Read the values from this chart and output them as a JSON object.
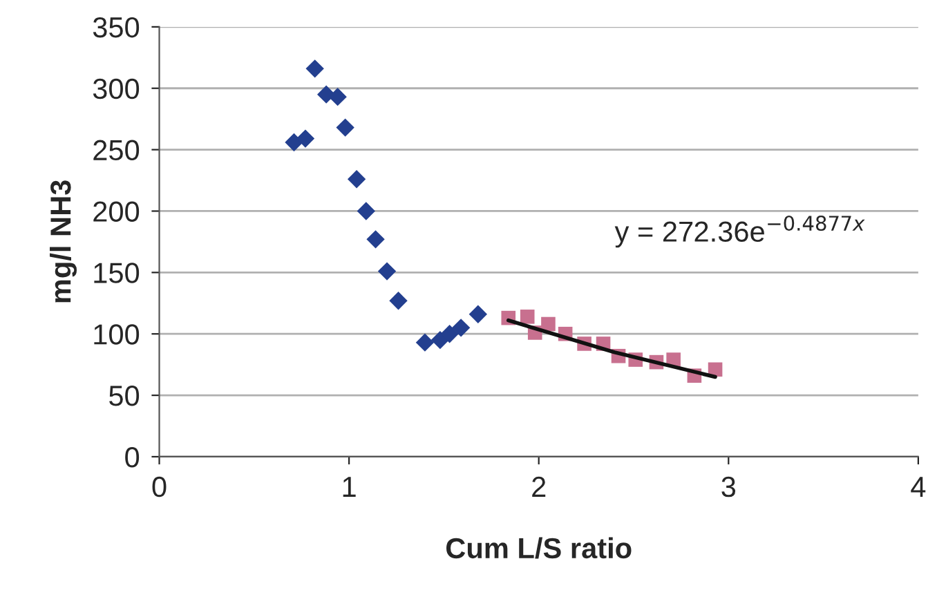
{
  "chart_data": {
    "type": "scatter",
    "xlabel": "Cum L/S ratio",
    "ylabel": "mg/l NH3",
    "xlim": [
      0,
      4
    ],
    "xticks": [
      0,
      1,
      2,
      3,
      4
    ],
    "ylim": [
      0,
      350
    ],
    "yticks": [
      0,
      50,
      100,
      150,
      200,
      250,
      300,
      350
    ],
    "grid": "y",
    "legend": false,
    "annotations": [
      "y = 272.36e$^{−0.4877x}$"
    ],
    "series": [
      {
        "color": "#233f8f",
        "marker": "diamond",
        "x": [
          0.71,
          0.77,
          0.82,
          0.88,
          0.94,
          0.98,
          1.04,
          1.09,
          1.14,
          1.2,
          1.26,
          1.4,
          1.48,
          1.53,
          1.59,
          1.68
        ],
        "values": [
          256,
          259,
          316,
          295,
          293,
          268,
          226,
          200,
          177,
          151,
          127,
          93,
          95,
          100,
          105,
          116
        ]
      },
      {
        "color": "#c8708f",
        "marker": "square",
        "x": [
          1.84,
          1.94,
          1.98,
          2.05,
          2.14,
          2.24,
          2.34,
          2.42,
          2.51,
          2.62,
          2.71,
          2.82,
          2.93
        ],
        "values": [
          113,
          114,
          101,
          108,
          100,
          92,
          92,
          82,
          79,
          77,
          79,
          66,
          71
        ]
      },
      {
        "type": "line",
        "color": "#111111",
        "marker": "none",
        "line_style": "solid",
        "x": [
          1.84,
          2.4,
          2.93
        ],
        "values": [
          111,
          85,
          65
        ]
      }
    ]
  }
}
